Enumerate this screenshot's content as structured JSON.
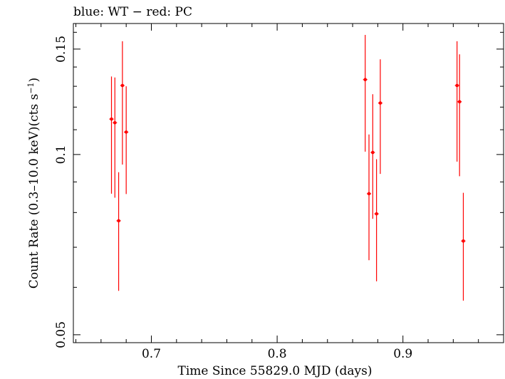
{
  "chart_data": {
    "type": "scatter",
    "title": "blue: WT − red: PC",
    "xlabel": "Time Since 55829.0 MJD (days)",
    "ylabel": "Count Rate (0.3–10.0 keV)(cts s",
    "ylabel_sup": "−1",
    "ylabel_end": ")",
    "xlim": [
      0.638,
      0.98
    ],
    "ylim": [
      0.0485,
      0.1655
    ],
    "yscale": "log",
    "x_ticks": [
      0.7,
      0.8,
      0.9
    ],
    "x_tick_labels": [
      "0.7",
      "0.8",
      "0.9"
    ],
    "y_ticks": [
      0.05,
      0.1,
      0.15
    ],
    "y_tick_labels": [
      "0.05",
      "0.1",
      "0.15"
    ],
    "grid": false,
    "series": [
      {
        "name": "PC",
        "color": "#ff0000",
        "points": [
          {
            "x": 0.6683,
            "y": 0.1146,
            "ylo": 0.086,
            "yhi": 0.135
          },
          {
            "x": 0.671,
            "y": 0.113,
            "ylo": 0.0847,
            "yhi": 0.1345
          },
          {
            "x": 0.674,
            "y": 0.0775,
            "ylo": 0.0592,
            "yhi": 0.0934
          },
          {
            "x": 0.677,
            "y": 0.1304,
            "ylo": 0.0962,
            "yhi": 0.1546
          },
          {
            "x": 0.68,
            "y": 0.109,
            "ylo": 0.0859,
            "yhi": 0.13
          },
          {
            "x": 0.87,
            "y": 0.1334,
            "ylo": 0.1011,
            "yhi": 0.1584
          },
          {
            "x": 0.873,
            "y": 0.086,
            "ylo": 0.0666,
            "yhi": 0.108
          },
          {
            "x": 0.876,
            "y": 0.1008,
            "ylo": 0.0781,
            "yhi": 0.1261
          },
          {
            "x": 0.879,
            "y": 0.0796,
            "ylo": 0.0614,
            "yhi": 0.0982
          },
          {
            "x": 0.882,
            "y": 0.1219,
            "ylo": 0.0928,
            "yhi": 0.1442
          },
          {
            "x": 0.943,
            "y": 0.1304,
            "ylo": 0.0973,
            "yhi": 0.1546
          },
          {
            "x": 0.945,
            "y": 0.1225,
            "ylo": 0.092,
            "yhi": 0.147
          },
          {
            "x": 0.948,
            "y": 0.0717,
            "ylo": 0.057,
            "yhi": 0.0863
          }
        ]
      }
    ]
  }
}
